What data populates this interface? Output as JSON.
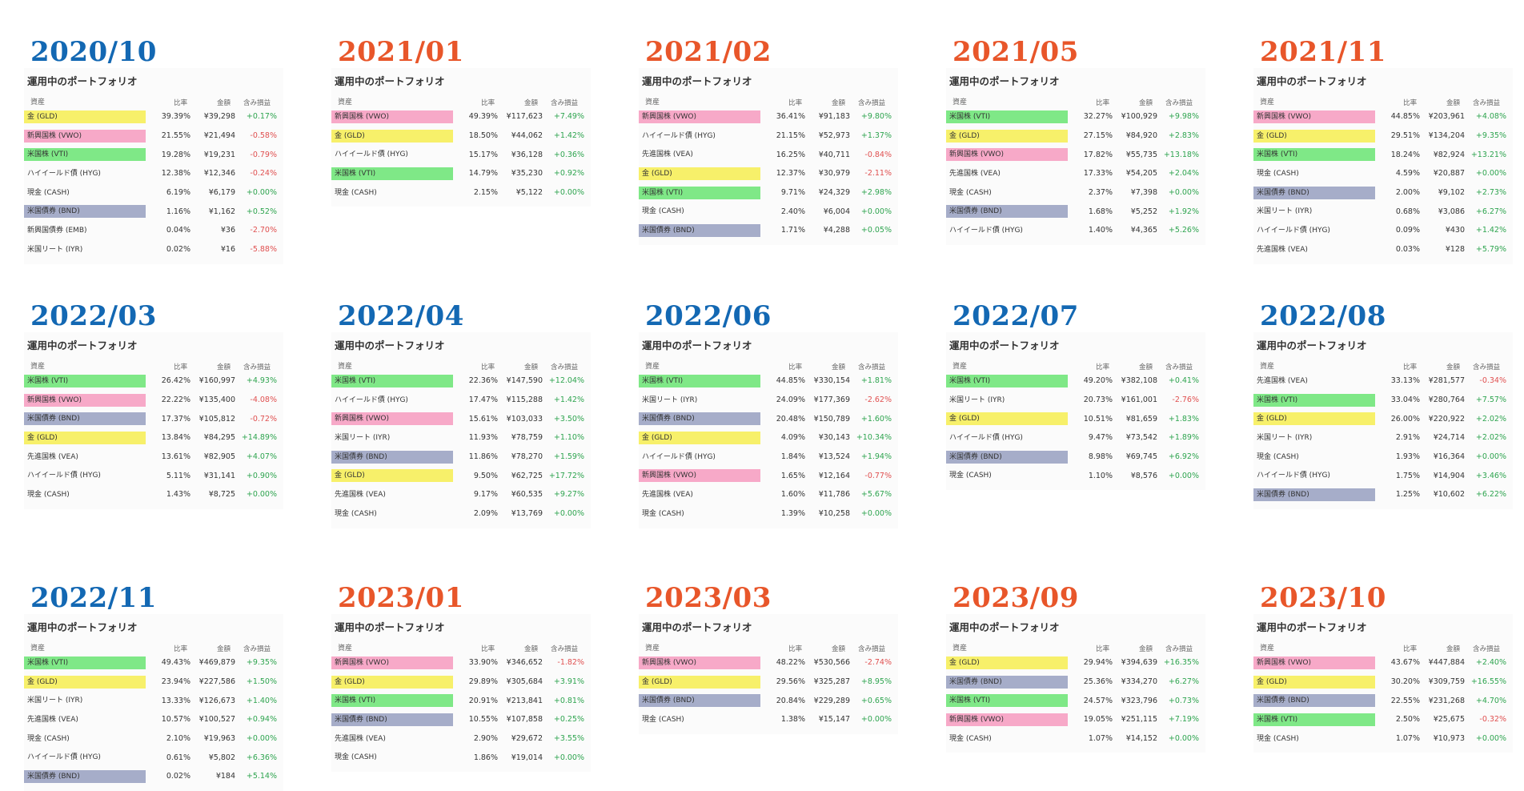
{
  "card_title": "運用中のポートフォリオ",
  "headers": {
    "asset": "資産",
    "pct": "比率",
    "amount": "金額",
    "pl": "含み損益"
  },
  "colors": {
    "blue_date": "#1368b3",
    "orange_date": "#e8562a",
    "gold": "#f7f06a",
    "vwo": "#f7a9c8",
    "vti": "#7fe887",
    "bnd": "#a6adc9",
    "positive": "#2ea44f",
    "negative": "#e05050"
  },
  "panels": [
    {
      "date": "2020/10",
      "date_color": "blue",
      "rows": [
        {
          "asset": "金 (GLD)",
          "hl": "gold",
          "pct": "39.39%",
          "amount": "¥39,298",
          "pl": "+0.17%"
        },
        {
          "asset": "新興国株 (VWO)",
          "hl": "vwo",
          "pct": "21.55%",
          "amount": "¥21,494",
          "pl": "-0.58%"
        },
        {
          "asset": "米国株 (VTI)",
          "hl": "vti",
          "pct": "19.28%",
          "amount": "¥19,231",
          "pl": "-0.79%"
        },
        {
          "asset": "ハイイールド債 (HYG)",
          "hl": "",
          "pct": "12.38%",
          "amount": "¥12,346",
          "pl": "-0.24%"
        },
        {
          "asset": "現金 (CASH)",
          "hl": "",
          "pct": "6.19%",
          "amount": "¥6,179",
          "pl": "+0.00%"
        },
        {
          "asset": "米国債券 (BND)",
          "hl": "bnd",
          "pct": "1.16%",
          "amount": "¥1,162",
          "pl": "+0.52%"
        },
        {
          "asset": "新興国債券 (EMB)",
          "hl": "",
          "pct": "0.04%",
          "amount": "¥36",
          "pl": "-2.70%"
        },
        {
          "asset": "米国リート (IYR)",
          "hl": "",
          "pct": "0.02%",
          "amount": "¥16",
          "pl": "-5.88%"
        }
      ]
    },
    {
      "date": "2021/01",
      "date_color": "orange",
      "rows": [
        {
          "asset": "新興国株 (VWO)",
          "hl": "vwo",
          "pct": "49.39%",
          "amount": "¥117,623",
          "pl": "+7.49%"
        },
        {
          "asset": "金 (GLD)",
          "hl": "gold",
          "pct": "18.50%",
          "amount": "¥44,062",
          "pl": "+1.42%"
        },
        {
          "asset": "ハイイールド債 (HYG)",
          "hl": "",
          "pct": "15.17%",
          "amount": "¥36,128",
          "pl": "+0.36%"
        },
        {
          "asset": "米国株 (VTI)",
          "hl": "vti",
          "pct": "14.79%",
          "amount": "¥35,230",
          "pl": "+0.92%"
        },
        {
          "asset": "現金 (CASH)",
          "hl": "",
          "pct": "2.15%",
          "amount": "¥5,122",
          "pl": "+0.00%"
        }
      ]
    },
    {
      "date": "2021/02",
      "date_color": "orange",
      "rows": [
        {
          "asset": "新興国株 (VWO)",
          "hl": "vwo",
          "pct": "36.41%",
          "amount": "¥91,183",
          "pl": "+9.80%"
        },
        {
          "asset": "ハイイールド債 (HYG)",
          "hl": "",
          "pct": "21.15%",
          "amount": "¥52,973",
          "pl": "+1.37%"
        },
        {
          "asset": "先進国株 (VEA)",
          "hl": "",
          "pct": "16.25%",
          "amount": "¥40,711",
          "pl": "-0.84%"
        },
        {
          "asset": "金 (GLD)",
          "hl": "gold",
          "pct": "12.37%",
          "amount": "¥30,979",
          "pl": "-2.11%"
        },
        {
          "asset": "米国株 (VTI)",
          "hl": "vti",
          "pct": "9.71%",
          "amount": "¥24,329",
          "pl": "+2.98%"
        },
        {
          "asset": "現金 (CASH)",
          "hl": "",
          "pct": "2.40%",
          "amount": "¥6,004",
          "pl": "+0.00%"
        },
        {
          "asset": "米国債券 (BND)",
          "hl": "bnd",
          "pct": "1.71%",
          "amount": "¥4,288",
          "pl": "+0.05%"
        }
      ]
    },
    {
      "date": "2021/05",
      "date_color": "orange",
      "rows": [
        {
          "asset": "米国株 (VTI)",
          "hl": "vti",
          "pct": "32.27%",
          "amount": "¥100,929",
          "pl": "+9.98%"
        },
        {
          "asset": "金 (GLD)",
          "hl": "gold",
          "pct": "27.15%",
          "amount": "¥84,920",
          "pl": "+2.83%"
        },
        {
          "asset": "新興国株 (VWO)",
          "hl": "vwo",
          "pct": "17.82%",
          "amount": "¥55,735",
          "pl": "+13.18%"
        },
        {
          "asset": "先進国株 (VEA)",
          "hl": "",
          "pct": "17.33%",
          "amount": "¥54,205",
          "pl": "+2.04%"
        },
        {
          "asset": "現金 (CASH)",
          "hl": "",
          "pct": "2.37%",
          "amount": "¥7,398",
          "pl": "+0.00%"
        },
        {
          "asset": "米国債券 (BND)",
          "hl": "bnd",
          "pct": "1.68%",
          "amount": "¥5,252",
          "pl": "+1.92%"
        },
        {
          "asset": "ハイイールド債 (HYG)",
          "hl": "",
          "pct": "1.40%",
          "amount": "¥4,365",
          "pl": "+5.26%"
        }
      ]
    },
    {
      "date": "2021/11",
      "date_color": "orange",
      "rows": [
        {
          "asset": "新興国株 (VWO)",
          "hl": "vwo",
          "pct": "44.85%",
          "amount": "¥203,961",
          "pl": "+4.08%"
        },
        {
          "asset": "金 (GLD)",
          "hl": "gold",
          "pct": "29.51%",
          "amount": "¥134,204",
          "pl": "+9.35%"
        },
        {
          "asset": "米国株 (VTI)",
          "hl": "vti",
          "pct": "18.24%",
          "amount": "¥82,924",
          "pl": "+13.21%"
        },
        {
          "asset": "現金 (CASH)",
          "hl": "",
          "pct": "4.59%",
          "amount": "¥20,887",
          "pl": "+0.00%"
        },
        {
          "asset": "米国債券 (BND)",
          "hl": "bnd",
          "pct": "2.00%",
          "amount": "¥9,102",
          "pl": "+2.73%"
        },
        {
          "asset": "米国リート (IYR)",
          "hl": "",
          "pct": "0.68%",
          "amount": "¥3,086",
          "pl": "+6.27%"
        },
        {
          "asset": "ハイイールド債 (HYG)",
          "hl": "",
          "pct": "0.09%",
          "amount": "¥430",
          "pl": "+1.42%"
        },
        {
          "asset": "先進国株 (VEA)",
          "hl": "",
          "pct": "0.03%",
          "amount": "¥128",
          "pl": "+5.79%"
        }
      ]
    },
    {
      "date": "2022/03",
      "date_color": "blue",
      "rows": [
        {
          "asset": "米国株 (VTI)",
          "hl": "vti",
          "pct": "26.42%",
          "amount": "¥160,997",
          "pl": "+4.93%"
        },
        {
          "asset": "新興国株 (VWO)",
          "hl": "vwo",
          "pct": "22.22%",
          "amount": "¥135,400",
          "pl": "-4.08%"
        },
        {
          "asset": "米国債券 (BND)",
          "hl": "bnd",
          "pct": "17.37%",
          "amount": "¥105,812",
          "pl": "-0.72%"
        },
        {
          "asset": "金 (GLD)",
          "hl": "gold",
          "pct": "13.84%",
          "amount": "¥84,295",
          "pl": "+14.89%"
        },
        {
          "asset": "先進国株 (VEA)",
          "hl": "",
          "pct": "13.61%",
          "amount": "¥82,905",
          "pl": "+4.07%"
        },
        {
          "asset": "ハイイールド債 (HYG)",
          "hl": "",
          "pct": "5.11%",
          "amount": "¥31,141",
          "pl": "+0.90%"
        },
        {
          "asset": "現金 (CASH)",
          "hl": "",
          "pct": "1.43%",
          "amount": "¥8,725",
          "pl": "+0.00%"
        }
      ]
    },
    {
      "date": "2022/04",
      "date_color": "blue",
      "rows": [
        {
          "asset": "米国株 (VTI)",
          "hl": "vti",
          "pct": "22.36%",
          "amount": "¥147,590",
          "pl": "+12.04%"
        },
        {
          "asset": "ハイイールド債 (HYG)",
          "hl": "",
          "pct": "17.47%",
          "amount": "¥115,288",
          "pl": "+1.42%"
        },
        {
          "asset": "新興国株 (VWO)",
          "hl": "vwo",
          "pct": "15.61%",
          "amount": "¥103,033",
          "pl": "+3.50%"
        },
        {
          "asset": "米国リート (IYR)",
          "hl": "",
          "pct": "11.93%",
          "amount": "¥78,759",
          "pl": "+1.10%"
        },
        {
          "asset": "米国債券 (BND)",
          "hl": "bnd",
          "pct": "11.86%",
          "amount": "¥78,270",
          "pl": "+1.59%"
        },
        {
          "asset": "金 (GLD)",
          "hl": "gold",
          "pct": "9.50%",
          "amount": "¥62,725",
          "pl": "+17.72%"
        },
        {
          "asset": "先進国株 (VEA)",
          "hl": "",
          "pct": "9.17%",
          "amount": "¥60,535",
          "pl": "+9.27%"
        },
        {
          "asset": "現金 (CASH)",
          "hl": "",
          "pct": "2.09%",
          "amount": "¥13,769",
          "pl": "+0.00%"
        }
      ]
    },
    {
      "date": "2022/06",
      "date_color": "blue",
      "rows": [
        {
          "asset": "米国株 (VTI)",
          "hl": "vti",
          "pct": "44.85%",
          "amount": "¥330,154",
          "pl": "+1.81%"
        },
        {
          "asset": "米国リート (IYR)",
          "hl": "",
          "pct": "24.09%",
          "amount": "¥177,369",
          "pl": "-2.62%"
        },
        {
          "asset": "米国債券 (BND)",
          "hl": "bnd",
          "pct": "20.48%",
          "amount": "¥150,789",
          "pl": "+1.60%"
        },
        {
          "asset": "金 (GLD)",
          "hl": "gold",
          "pct": "4.09%",
          "amount": "¥30,143",
          "pl": "+10.34%"
        },
        {
          "asset": "ハイイールド債 (HYG)",
          "hl": "",
          "pct": "1.84%",
          "amount": "¥13,524",
          "pl": "+1.94%"
        },
        {
          "asset": "新興国株 (VWO)",
          "hl": "vwo",
          "pct": "1.65%",
          "amount": "¥12,164",
          "pl": "-0.77%"
        },
        {
          "asset": "先進国株 (VEA)",
          "hl": "",
          "pct": "1.60%",
          "amount": "¥11,786",
          "pl": "+5.67%"
        },
        {
          "asset": "現金 (CASH)",
          "hl": "",
          "pct": "1.39%",
          "amount": "¥10,258",
          "pl": "+0.00%"
        }
      ]
    },
    {
      "date": "2022/07",
      "date_color": "blue",
      "rows": [
        {
          "asset": "米国株 (VTI)",
          "hl": "vti",
          "pct": "49.20%",
          "amount": "¥382,108",
          "pl": "+0.41%"
        },
        {
          "asset": "米国リート (IYR)",
          "hl": "",
          "pct": "20.73%",
          "amount": "¥161,001",
          "pl": "-2.76%"
        },
        {
          "asset": "金 (GLD)",
          "hl": "gold",
          "pct": "10.51%",
          "amount": "¥81,659",
          "pl": "+1.83%"
        },
        {
          "asset": "ハイイールド債 (HYG)",
          "hl": "",
          "pct": "9.47%",
          "amount": "¥73,542",
          "pl": "+1.89%"
        },
        {
          "asset": "米国債券 (BND)",
          "hl": "bnd",
          "pct": "8.98%",
          "amount": "¥69,745",
          "pl": "+6.92%"
        },
        {
          "asset": "現金 (CASH)",
          "hl": "",
          "pct": "1.10%",
          "amount": "¥8,576",
          "pl": "+0.00%"
        }
      ]
    },
    {
      "date": "2022/08",
      "date_color": "blue",
      "rows": [
        {
          "asset": "先進国株 (VEA)",
          "hl": "",
          "pct": "33.13%",
          "amount": "¥281,577",
          "pl": "-0.34%"
        },
        {
          "asset": "米国株 (VTI)",
          "hl": "vti",
          "pct": "33.04%",
          "amount": "¥280,764",
          "pl": "+7.57%"
        },
        {
          "asset": "金 (GLD)",
          "hl": "gold",
          "pct": "26.00%",
          "amount": "¥220,922",
          "pl": "+2.02%"
        },
        {
          "asset": "米国リート (IYR)",
          "hl": "",
          "pct": "2.91%",
          "amount": "¥24,714",
          "pl": "+2.02%"
        },
        {
          "asset": "現金 (CASH)",
          "hl": "",
          "pct": "1.93%",
          "amount": "¥16,364",
          "pl": "+0.00%"
        },
        {
          "asset": "ハイイールド債 (HYG)",
          "hl": "",
          "pct": "1.75%",
          "amount": "¥14,904",
          "pl": "+3.46%"
        },
        {
          "asset": "米国債券 (BND)",
          "hl": "bnd",
          "pct": "1.25%",
          "amount": "¥10,602",
          "pl": "+6.22%"
        }
      ]
    },
    {
      "date": "2022/11",
      "date_color": "blue",
      "rows": [
        {
          "asset": "米国株 (VTI)",
          "hl": "vti",
          "pct": "49.43%",
          "amount": "¥469,879",
          "pl": "+9.35%"
        },
        {
          "asset": "金 (GLD)",
          "hl": "gold",
          "pct": "23.94%",
          "amount": "¥227,586",
          "pl": "+1.50%"
        },
        {
          "asset": "米国リート (IYR)",
          "hl": "",
          "pct": "13.33%",
          "amount": "¥126,673",
          "pl": "+1.40%"
        },
        {
          "asset": "先進国株 (VEA)",
          "hl": "",
          "pct": "10.57%",
          "amount": "¥100,527",
          "pl": "+0.94%"
        },
        {
          "asset": "現金 (CASH)",
          "hl": "",
          "pct": "2.10%",
          "amount": "¥19,963",
          "pl": "+0.00%"
        },
        {
          "asset": "ハイイールド債 (HYG)",
          "hl": "",
          "pct": "0.61%",
          "amount": "¥5,802",
          "pl": "+6.36%"
        },
        {
          "asset": "米国債券 (BND)",
          "hl": "bnd",
          "pct": "0.02%",
          "amount": "¥184",
          "pl": "+5.14%"
        }
      ]
    },
    {
      "date": "2023/01",
      "date_color": "orange",
      "rows": [
        {
          "asset": "新興国株 (VWO)",
          "hl": "vwo",
          "pct": "33.90%",
          "amount": "¥346,652",
          "pl": "-1.82%"
        },
        {
          "asset": "金 (GLD)",
          "hl": "gold",
          "pct": "29.89%",
          "amount": "¥305,684",
          "pl": "+3.91%"
        },
        {
          "asset": "米国株 (VTI)",
          "hl": "vti",
          "pct": "20.91%",
          "amount": "¥213,841",
          "pl": "+0.81%"
        },
        {
          "asset": "米国債券 (BND)",
          "hl": "bnd",
          "pct": "10.55%",
          "amount": "¥107,858",
          "pl": "+0.25%"
        },
        {
          "asset": "先進国株 (VEA)",
          "hl": "",
          "pct": "2.90%",
          "amount": "¥29,672",
          "pl": "+3.55%"
        },
        {
          "asset": "現金 (CASH)",
          "hl": "",
          "pct": "1.86%",
          "amount": "¥19,014",
          "pl": "+0.00%"
        }
      ]
    },
    {
      "date": "2023/03",
      "date_color": "orange",
      "rows": [
        {
          "asset": "新興国株 (VWO)",
          "hl": "vwo",
          "pct": "48.22%",
          "amount": "¥530,566",
          "pl": "-2.74%"
        },
        {
          "asset": "金 (GLD)",
          "hl": "gold",
          "pct": "29.56%",
          "amount": "¥325,287",
          "pl": "+8.95%"
        },
        {
          "asset": "米国債券 (BND)",
          "hl": "bnd",
          "pct": "20.84%",
          "amount": "¥229,289",
          "pl": "+0.65%"
        },
        {
          "asset": "現金 (CASH)",
          "hl": "",
          "pct": "1.38%",
          "amount": "¥15,147",
          "pl": "+0.00%"
        }
      ]
    },
    {
      "date": "2023/09",
      "date_color": "orange",
      "rows": [
        {
          "asset": "金 (GLD)",
          "hl": "gold",
          "pct": "29.94%",
          "amount": "¥394,639",
          "pl": "+16.35%"
        },
        {
          "asset": "米国債券 (BND)",
          "hl": "bnd",
          "pct": "25.36%",
          "amount": "¥334,270",
          "pl": "+6.27%"
        },
        {
          "asset": "米国株 (VTI)",
          "hl": "vti",
          "pct": "24.57%",
          "amount": "¥323,796",
          "pl": "+0.73%"
        },
        {
          "asset": "新興国株 (VWO)",
          "hl": "vwo",
          "pct": "19.05%",
          "amount": "¥251,115",
          "pl": "+7.19%"
        },
        {
          "asset": "現金 (CASH)",
          "hl": "",
          "pct": "1.07%",
          "amount": "¥14,152",
          "pl": "+0.00%"
        }
      ]
    },
    {
      "date": "2023/10",
      "date_color": "orange",
      "rows": [
        {
          "asset": "新興国株 (VWO)",
          "hl": "vwo",
          "pct": "43.67%",
          "amount": "¥447,884",
          "pl": "+2.40%"
        },
        {
          "asset": "金 (GLD)",
          "hl": "gold",
          "pct": "30.20%",
          "amount": "¥309,759",
          "pl": "+16.55%"
        },
        {
          "asset": "米国債券 (BND)",
          "hl": "bnd",
          "pct": "22.55%",
          "amount": "¥231,268",
          "pl": "+4.70%"
        },
        {
          "asset": "米国株 (VTI)",
          "hl": "vti",
          "pct": "2.50%",
          "amount": "¥25,675",
          "pl": "-0.32%"
        },
        {
          "asset": "現金 (CASH)",
          "hl": "",
          "pct": "1.07%",
          "amount": "¥10,973",
          "pl": "+0.00%"
        }
      ]
    }
  ]
}
